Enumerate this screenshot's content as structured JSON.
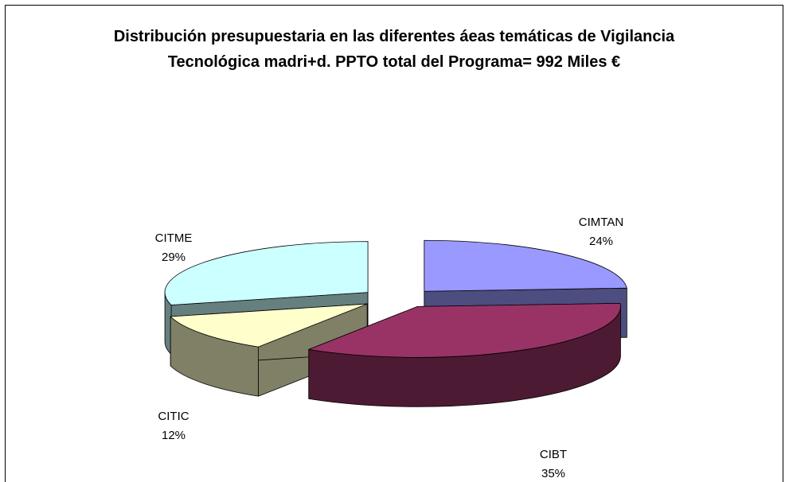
{
  "chart_data": {
    "type": "pie",
    "title": "Distribución presupuestaria en las diferentes áeas temáticas de Vigilancia Tecnológica madri+d. PPTO total del Programa= 992 Miles €",
    "categories": [
      "CIMTAN",
      "CIBT",
      "CITIC",
      "CITME"
    ],
    "values": [
      24,
      35,
      12,
      29
    ],
    "value_labels": [
      "24%",
      "35%",
      "12%",
      "29%"
    ],
    "colors": [
      "#9999ff",
      "#993366",
      "#ffffcc",
      "#ccffff"
    ],
    "side_colors": [
      "#4d4d80",
      "#4d1a33",
      "#808066",
      "#668080"
    ]
  }
}
